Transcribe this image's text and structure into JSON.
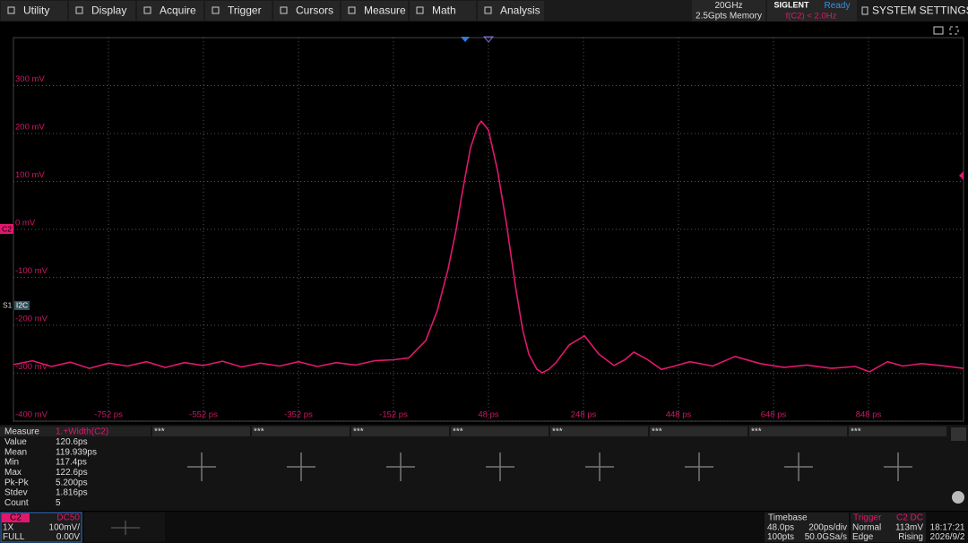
{
  "menu": {
    "items": [
      "Utility",
      "Display",
      "Acquire",
      "Trigger",
      "Cursors",
      "Measure",
      "Math",
      "Analysis"
    ]
  },
  "status": {
    "bandwidth": "20GHz",
    "memory": "2.5Gpts Memory",
    "brand": "SIGLENT",
    "state": "Ready",
    "trigger_condition": "f(C2) < 2.0Hz",
    "system_settings": "SYSTEM SETTINGS"
  },
  "plot": {
    "channel_label": "C2",
    "bus_label": "S1",
    "bus_type": "I2C"
  },
  "waveform": {
    "type": "line",
    "color": "#e0186c",
    "xlim": [
      -952,
      1048
    ],
    "ylim": [
      -400,
      400
    ],
    "xticks": [
      {
        "value": -752,
        "label": "-752 ps"
      },
      {
        "value": -552,
        "label": "-552 ps"
      },
      {
        "value": -352,
        "label": "-352 ps"
      },
      {
        "value": -152,
        "label": "-152 ps"
      },
      {
        "value": 48,
        "label": "48 ps"
      },
      {
        "value": 248,
        "label": "248 ps"
      },
      {
        "value": 448,
        "label": "448 ps"
      },
      {
        "value": 648,
        "label": "648 ps"
      },
      {
        "value": 848,
        "label": "848 ps"
      }
    ],
    "yticks": [
      {
        "value": 300,
        "label": "300 mV"
      },
      {
        "value": 200,
        "label": "200 mV"
      },
      {
        "value": 100,
        "label": "100 mV"
      },
      {
        "value": 0,
        "label": "0 mV"
      },
      {
        "value": -100,
        "label": "-100 mV"
      },
      {
        "value": -200,
        "label": "-200 mV"
      },
      {
        "value": -300,
        "label": "-300 mV"
      },
      {
        "value": -400,
        "label": "-400 mV"
      }
    ],
    "x": [
      -952,
      -912,
      -872,
      -832,
      -792,
      -752,
      -712,
      -672,
      -632,
      -592,
      -552,
      -512,
      -472,
      -432,
      -392,
      -352,
      -312,
      -272,
      -232,
      -192,
      -152,
      -120,
      -84,
      -60,
      -37,
      -20,
      -9,
      10,
      25,
      33,
      48,
      67,
      86,
      105,
      120,
      133,
      150,
      161,
      175,
      190,
      218,
      250,
      280,
      312,
      335,
      354,
      380,
      412,
      440,
      472,
      520,
      567,
      620,
      670,
      718,
      770,
      820,
      850,
      888,
      920,
      960,
      1000,
      1048
    ],
    "values": [
      -282,
      -274,
      -286,
      -277,
      -290,
      -279,
      -285,
      -276,
      -288,
      -278,
      -284,
      -275,
      -287,
      -279,
      -285,
      -276,
      -286,
      -278,
      -283,
      -274,
      -272,
      -268,
      -232,
      -170,
      -82,
      0,
      67,
      170,
      215,
      226,
      207,
      123,
      11,
      -120,
      -210,
      -260,
      -292,
      -299,
      -292,
      -278,
      -241,
      -222,
      -260,
      -284,
      -272,
      -256,
      -270,
      -292,
      -285,
      -276,
      -285,
      -265,
      -280,
      -288,
      -283,
      -290,
      -286,
      -297,
      -276,
      -285,
      -280,
      -284,
      -290
    ]
  },
  "measure": {
    "title": "Measure",
    "source": "1.+Width(C2)",
    "rows": [
      {
        "label": "Value",
        "value": "120.6ps"
      },
      {
        "label": "Mean",
        "value": "119.939ps"
      },
      {
        "label": "Min",
        "value": "117.4ps"
      },
      {
        "label": "Max",
        "value": "122.6ps"
      },
      {
        "label": "Pk-Pk",
        "value": "5.200ps"
      },
      {
        "label": "Stdev",
        "value": "1.816ps"
      },
      {
        "label": "Count",
        "value": "5"
      }
    ],
    "slots": [
      "***",
      "***",
      "***",
      "***",
      "***",
      "***",
      "***",
      "***"
    ]
  },
  "channel_box": {
    "name": "C2",
    "coupling": "DC50",
    "probe": "1X",
    "scale": "100mV/",
    "bandwidth": "FULL",
    "offset": "0.00V"
  },
  "timebase": {
    "title": "Timebase",
    "delay": "48.0ps",
    "scale": "200ps/div",
    "points": "100pts",
    "rate": "50.0GSa/s"
  },
  "trigger": {
    "title": "Trigger",
    "source": "C2 DC",
    "mode": "Normal",
    "level": "113mV",
    "type": "Edge",
    "slope": "Rising"
  },
  "clock": {
    "time": "18:17:21",
    "date": "2026/9/2"
  }
}
